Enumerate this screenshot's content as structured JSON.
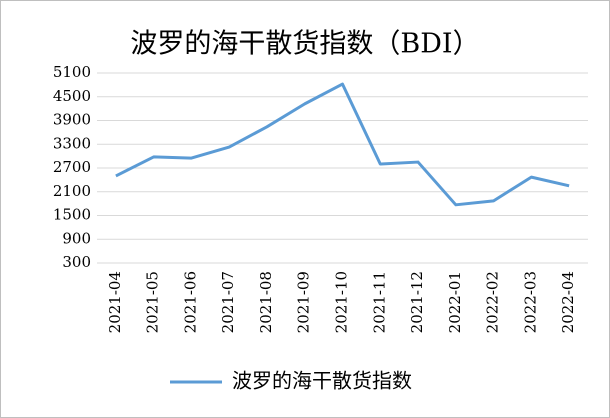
{
  "chart_data": {
    "type": "line",
    "title": "波罗的海干散货指数（BDI）",
    "categories": [
      "2021-04",
      "2021-05",
      "2021-06",
      "2021-07",
      "2021-08",
      "2021-09",
      "2021-10",
      "2021-11",
      "2021-12",
      "2022-01",
      "2022-02",
      "2022-03",
      "2022-04"
    ],
    "series": [
      {
        "name": "波罗的海干散货指数",
        "color": "#5b9bd5",
        "values": [
          2500,
          2980,
          2950,
          3230,
          3740,
          4320,
          4820,
          2800,
          2850,
          1770,
          1870,
          2470,
          2250
        ]
      }
    ],
    "ylim": [
      300,
      5100
    ],
    "yticks": [
      300,
      900,
      1500,
      2100,
      2700,
      3300,
      3900,
      4500,
      5100
    ],
    "grid": true,
    "legend": "bottom"
  }
}
